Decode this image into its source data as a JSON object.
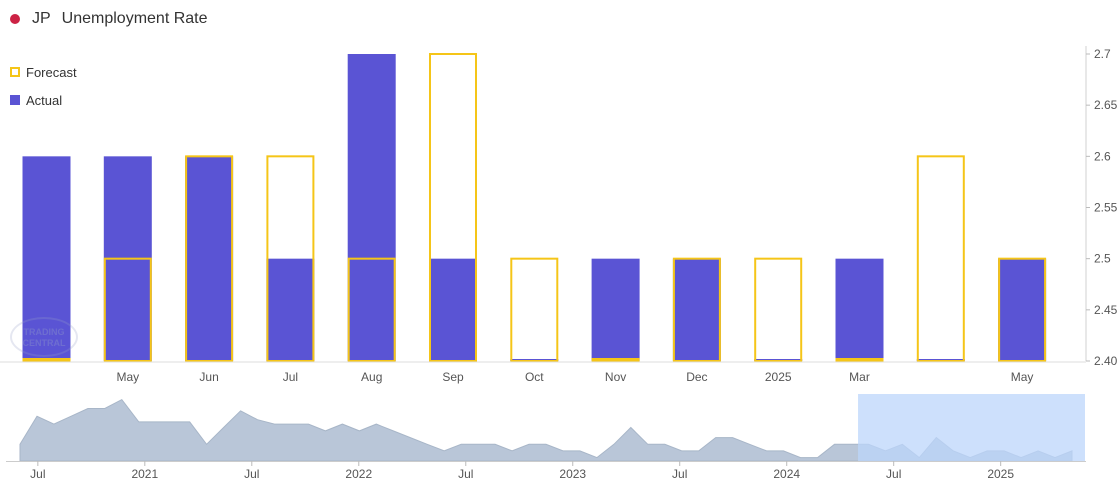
{
  "header": {
    "country": "JP",
    "title": "Unemployment Rate"
  },
  "legend": {
    "forecast": "Forecast",
    "actual": "Actual"
  },
  "watermark": "TRADING CENTRAL",
  "colors": {
    "actual": "#5a54d4",
    "forecast": "#f5c518",
    "navigator_area": "#b9c6d8",
    "navigator_window": "#bcd6fb",
    "flag": "#cc2244"
  },
  "chart_data": [
    {
      "type": "bar",
      "categories": [
        "",
        "May",
        "Jun",
        "Jul",
        "Aug",
        "Sep",
        "Oct",
        "Nov",
        "Dec",
        "2025",
        "Mar",
        "",
        "May"
      ],
      "series": [
        {
          "name": "Actual",
          "values": [
            2.6,
            2.6,
            2.6,
            2.5,
            2.7,
            2.5,
            2.4,
            2.5,
            2.5,
            2.4,
            2.5,
            2.4,
            2.5
          ]
        },
        {
          "name": "Forecast",
          "values": [
            2.4,
            2.5,
            2.6,
            2.6,
            2.5,
            2.7,
            2.5,
            2.4,
            2.5,
            2.5,
            2.4,
            2.6,
            2.5
          ]
        }
      ],
      "ylim": [
        2.4,
        2.7
      ],
      "yticks": [
        "2.40",
        "2.45",
        "2.5",
        "2.55",
        "2.6",
        "2.65",
        "2.7"
      ],
      "yaxis_position": "right",
      "legend": "top-left"
    },
    {
      "type": "area",
      "xticks": [
        "Jul",
        "2021",
        "Jul",
        "2022",
        "Jul",
        "2023",
        "Jul",
        "2024",
        "Jul",
        "2025"
      ],
      "values": [
        2.8,
        3.05,
        2.98,
        3.05,
        3.12,
        3.12,
        3.2,
        3.0,
        3.0,
        3.0,
        3.0,
        2.8,
        2.95,
        3.1,
        3.02,
        2.98,
        2.98,
        2.98,
        2.92,
        2.98,
        2.92,
        2.98,
        2.92,
        2.86,
        2.8,
        2.74,
        2.8,
        2.8,
        2.8,
        2.74,
        2.8,
        2.8,
        2.74,
        2.74,
        2.68,
        2.8,
        2.95,
        2.8,
        2.8,
        2.74,
        2.74,
        2.86,
        2.86,
        2.8,
        2.74,
        2.74,
        2.68,
        2.68,
        2.8,
        2.8,
        2.8,
        2.74,
        2.8,
        2.68,
        2.86,
        2.74,
        2.68,
        2.74,
        2.74,
        2.68,
        2.74,
        2.68,
        2.74
      ],
      "ylim": [
        2.65,
        3.25
      ],
      "selected_range": "2024-05 to 2025-05"
    }
  ]
}
